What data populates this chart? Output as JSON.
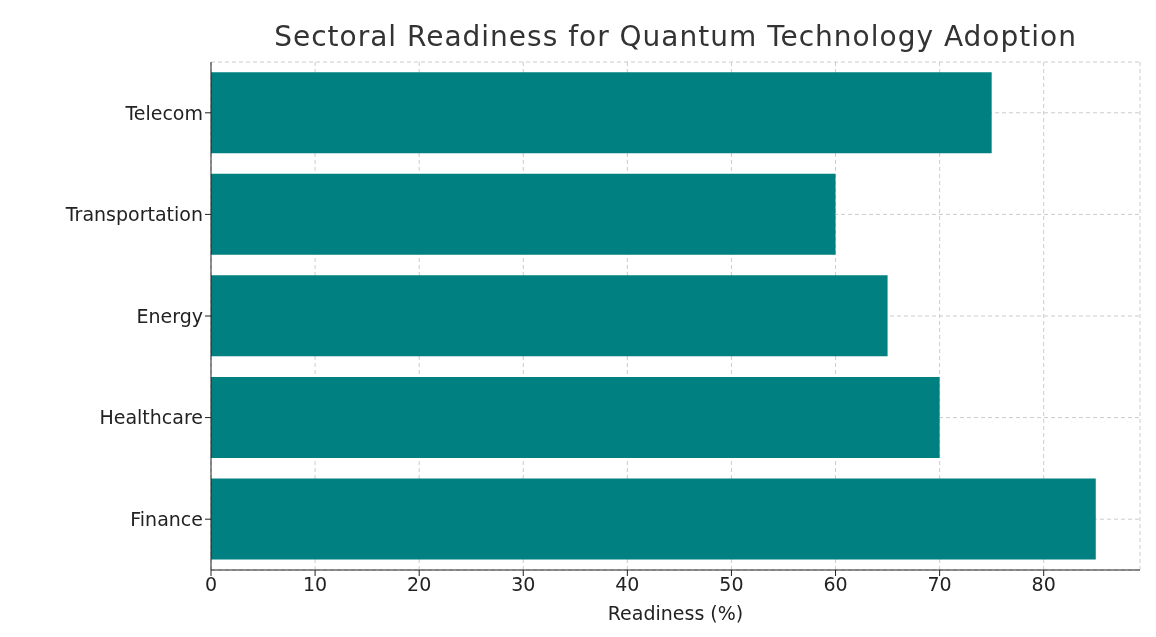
{
  "chart_data": {
    "type": "bar",
    "orientation": "horizontal",
    "title": "Sectoral Readiness for Quantum Technology Adoption",
    "xlabel": "Readiness (%)",
    "categories": [
      "Telecom",
      "Transportation",
      "Energy",
      "Healthcare",
      "Finance"
    ],
    "values": [
      75,
      60,
      65,
      70,
      85
    ],
    "color": "#008080",
    "xlim": [
      0,
      89.25
    ],
    "xticks": [
      0,
      10,
      20,
      30,
      40,
      50,
      60,
      70,
      80
    ],
    "grid": true
  }
}
